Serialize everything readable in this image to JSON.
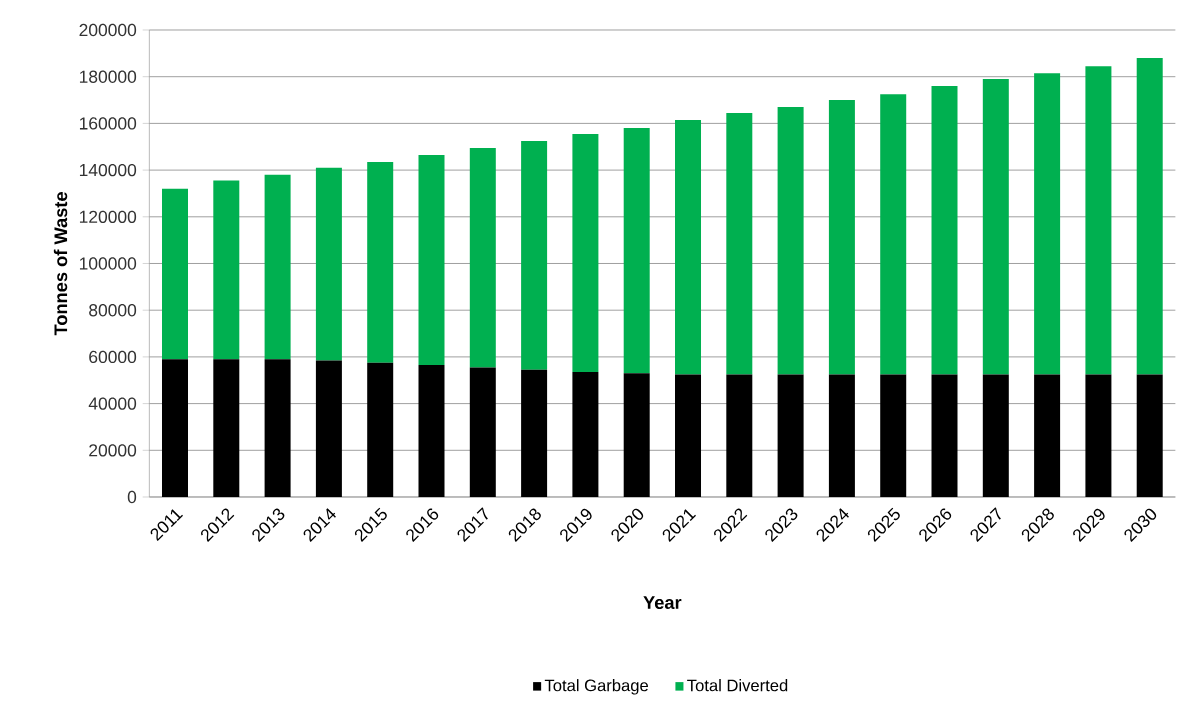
{
  "chart_data": {
    "type": "bar",
    "stacked": true,
    "xlabel": "Year",
    "ylabel": "Tonnes of Waste",
    "categories": [
      "2011",
      "2012",
      "2013",
      "2014",
      "2015",
      "2016",
      "2017",
      "2018",
      "2019",
      "2020",
      "2021",
      "2022",
      "2023",
      "2024",
      "2025",
      "2026",
      "2027",
      "2028",
      "2029",
      "2030"
    ],
    "series": [
      {
        "name": "Total  Garbage",
        "color": "#000000",
        "values": [
          59000,
          59000,
          59000,
          58500,
          57500,
          56500,
          55500,
          54500,
          53500,
          53000,
          52500,
          52500,
          52500,
          52500,
          52500,
          52500,
          52500,
          52500,
          52500,
          52500
        ]
      },
      {
        "name": "Total Diverted",
        "color": "#00b050",
        "values": [
          73000,
          76500,
          79000,
          82500,
          86000,
          90000,
          94000,
          98000,
          102000,
          105000,
          109000,
          112000,
          114500,
          117500,
          120000,
          123500,
          126500,
          129000,
          132000,
          135500
        ]
      }
    ],
    "ylim": [
      0,
      200000
    ],
    "yticks": [
      0,
      20000,
      40000,
      60000,
      80000,
      100000,
      120000,
      140000,
      160000,
      180000,
      200000
    ],
    "grid": "y",
    "legend": "bottom"
  }
}
